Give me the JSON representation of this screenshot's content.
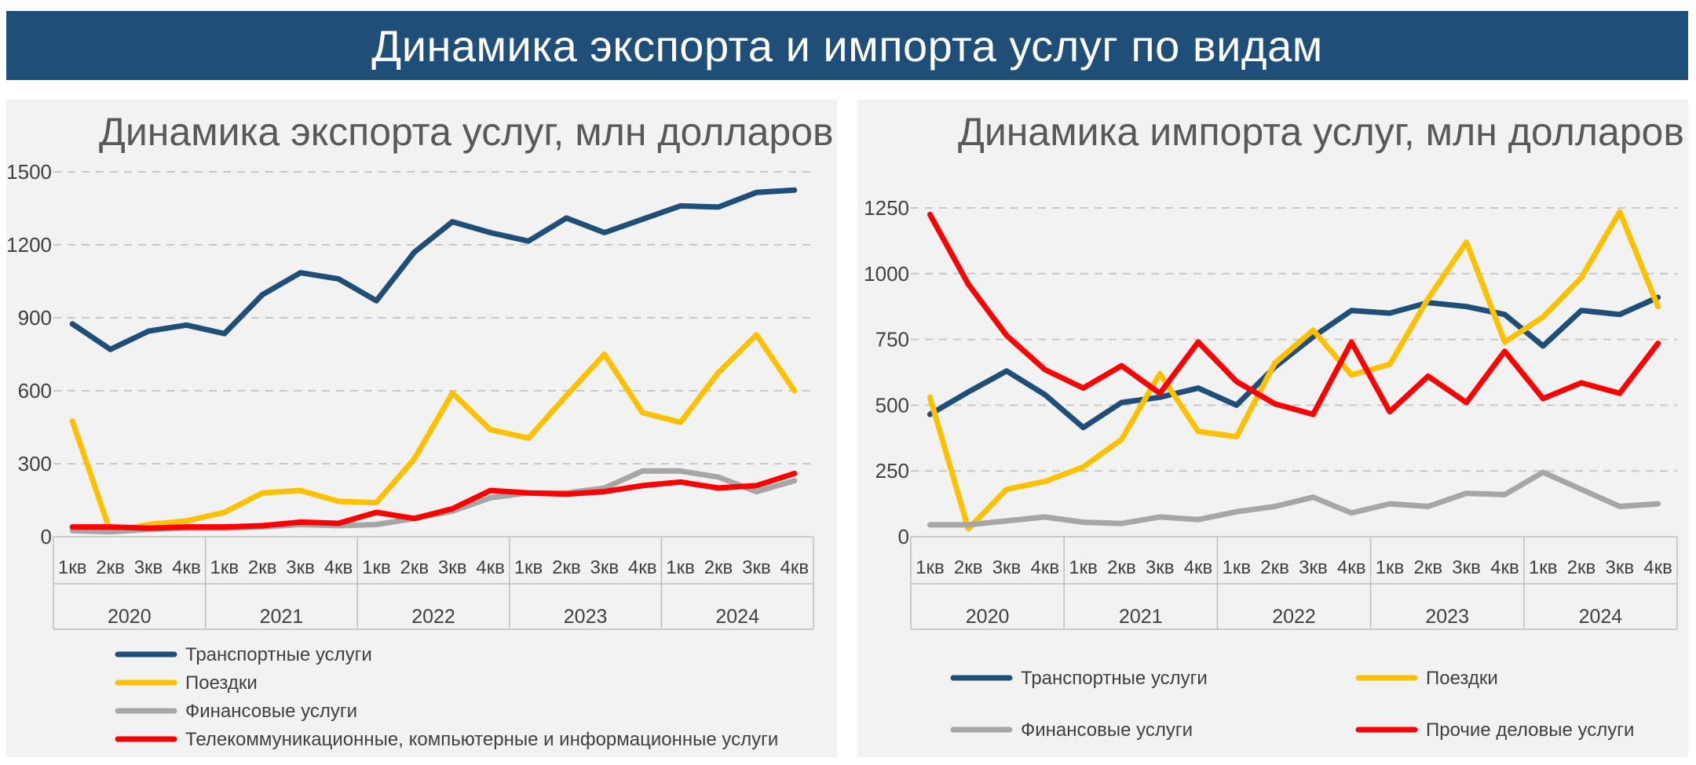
{
  "header": {
    "title": "Динамика экспорта и импорта услуг по видам"
  },
  "chart_data": [
    {
      "type": "line",
      "title": "Динамика экспорта услуг, млн долларов",
      "ylim": [
        0,
        1500
      ],
      "yticks": [
        "0",
        "300",
        "600",
        "900",
        "1200",
        "1500"
      ],
      "ytick_values": [
        0,
        300,
        600,
        900,
        1200,
        1500
      ],
      "grid": true,
      "legend_position": "bottom-left",
      "quarters": [
        "1кв",
        "2кв",
        "3кв",
        "4кв",
        "1кв",
        "2кв",
        "3кв",
        "4кв",
        "1кв",
        "2кв",
        "3кв",
        "4кв",
        "1кв",
        "2кв",
        "3кв",
        "4кв",
        "1кв",
        "2кв",
        "3кв",
        "4кв"
      ],
      "years": [
        "2020",
        "2021",
        "2022",
        "2023",
        "2024"
      ],
      "series": [
        {
          "name": "Транспортные услуги",
          "color": "#1f4e79",
          "values": [
            875,
            770,
            845,
            870,
            835,
            995,
            1085,
            1060,
            970,
            1170,
            1295,
            1250,
            1215,
            1310,
            1250,
            1305,
            1360,
            1355,
            1415,
            1425
          ]
        },
        {
          "name": "Поездки",
          "color": "#ffc000",
          "values": [
            475,
            20,
            50,
            65,
            100,
            180,
            190,
            145,
            140,
            320,
            590,
            440,
            405,
            580,
            750,
            510,
            470,
            675,
            830,
            600
          ]
        },
        {
          "name": "Финансовые услуги",
          "color": "#a6a6a6",
          "values": [
            25,
            20,
            30,
            35,
            35,
            40,
            50,
            45,
            50,
            75,
            105,
            160,
            180,
            180,
            200,
            270,
            270,
            245,
            185,
            230
          ]
        },
        {
          "name": "Телекоммуникационные, компьютерные и информационные услуги",
          "color": "#ff0000",
          "values": [
            40,
            40,
            35,
            40,
            40,
            45,
            60,
            55,
            100,
            75,
            115,
            190,
            180,
            175,
            185,
            210,
            225,
            200,
            210,
            260
          ]
        }
      ]
    },
    {
      "type": "line",
      "title": "Динамика импорта услуг, млн долларов",
      "ylim": [
        0,
        1250
      ],
      "yticks": [
        "0",
        "250",
        "500",
        "750",
        "1000",
        "1250"
      ],
      "ytick_values": [
        0,
        250,
        500,
        750,
        1000,
        1250
      ],
      "grid": true,
      "legend_position": "bottom",
      "quarters": [
        "1кв",
        "2кв",
        "3кв",
        "4кв",
        "1кв",
        "2кв",
        "3кв",
        "4кв",
        "1кв",
        "2кв",
        "3кв",
        "4кв",
        "1кв",
        "2кв",
        "3кв",
        "4кв",
        "1кв",
        "2кв",
        "3кв",
        "4кв"
      ],
      "years": [
        "2020",
        "2021",
        "2022",
        "2023",
        "2024"
      ],
      "series": [
        {
          "name": "Транспортные услуги",
          "color": "#1f4e79",
          "values": [
            465,
            550,
            630,
            540,
            415,
            510,
            530,
            565,
            500,
            645,
            760,
            860,
            850,
            890,
            875,
            845,
            725,
            860,
            845,
            910
          ]
        },
        {
          "name": "Поездки",
          "color": "#ffc000",
          "values": [
            530,
            30,
            180,
            210,
            265,
            370,
            620,
            400,
            380,
            660,
            785,
            615,
            655,
            905,
            1120,
            740,
            835,
            985,
            1235,
            875
          ]
        },
        {
          "name": "Финансовые услуги",
          "color": "#a6a6a6",
          "values": [
            45,
            45,
            60,
            75,
            55,
            50,
            75,
            65,
            95,
            115,
            150,
            90,
            125,
            115,
            165,
            160,
            245,
            180,
            115,
            125
          ]
        },
        {
          "name": "Прочие деловые услуги",
          "color": "#ff0000",
          "values": [
            1225,
            960,
            765,
            635,
            565,
            650,
            545,
            740,
            590,
            505,
            465,
            740,
            475,
            610,
            510,
            705,
            525,
            585,
            545,
            735
          ]
        }
      ]
    }
  ]
}
